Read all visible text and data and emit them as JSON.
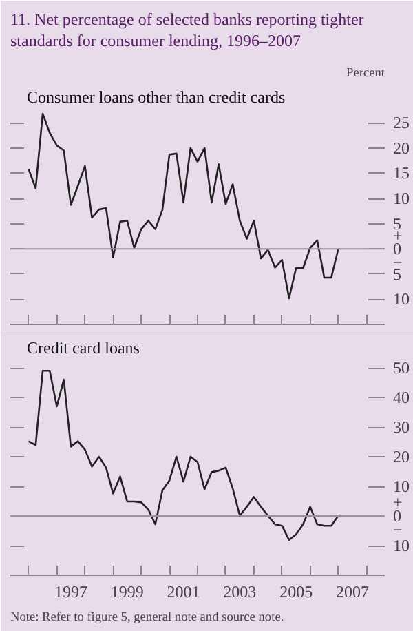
{
  "chart_data": [
    {
      "type": "line",
      "title": "11.   Net percentage of selected banks reporting tighter standards for consumer lending, 1996–2007",
      "annotations": [
        "Percent"
      ],
      "x": [
        1996.0,
        1996.25,
        1996.5,
        1996.75,
        1997.0,
        1997.25,
        1997.5,
        1997.75,
        1998.0,
        1998.25,
        1998.5,
        1998.75,
        1999.0,
        1999.25,
        1999.5,
        1999.75,
        2000.0,
        2000.25,
        2000.5,
        2000.75,
        2001.0,
        2001.25,
        2001.5,
        2001.75,
        2002.0,
        2002.25,
        2002.5,
        2002.75,
        2003.0,
        2003.25,
        2003.5,
        2003.75,
        2004.0,
        2004.25,
        2004.5,
        2004.75,
        2005.0,
        2005.25,
        2005.5,
        2005.75,
        2006.0,
        2006.25,
        2006.5,
        2006.75,
        2007.0
      ],
      "series": [
        {
          "name": "Consumer loans other than credit cards",
          "color": "#222222",
          "values": [
            15.8,
            12,
            26.8,
            23,
            20.5,
            19.5,
            8.7,
            12.5,
            16.4,
            6.2,
            7.8,
            8.1,
            -1.7,
            5.4,
            5.6,
            0.2,
            3.9,
            5.6,
            3.9,
            7.7,
            18.7,
            18.9,
            9.2,
            20,
            17.3,
            20,
            9.2,
            16.8,
            8.9,
            12.8,
            5.6,
            2,
            5.6,
            -1.9,
            -0.2,
            -3.7,
            -2.2,
            -9.8,
            -3.8,
            -3.8,
            0.2,
            1.7,
            -5.7,
            -5.7,
            0
          ]
        }
      ],
      "xlim": [
        1995.35,
        2008.65
      ],
      "ylim": [
        -15,
        32
      ],
      "xticks": [
        {
          "value": 1996,
          "label": null
        },
        {
          "value": 1997,
          "label": null
        },
        {
          "value": 1998,
          "label": null
        },
        {
          "value": 1999,
          "label": null
        },
        {
          "value": 2000,
          "label": null
        },
        {
          "value": 2001,
          "label": null
        },
        {
          "value": 2002,
          "label": null
        },
        {
          "value": 2003,
          "label": null
        },
        {
          "value": 2004,
          "label": null
        },
        {
          "value": 2005,
          "label": null
        },
        {
          "value": 2006,
          "label": null
        },
        {
          "value": 2007,
          "label": null
        },
        {
          "value": 2008,
          "label": null
        }
      ],
      "yticks": [
        {
          "value": -10,
          "label": "10"
        },
        {
          "value": -5,
          "label": "5"
        },
        {
          "value": 0,
          "label": "+\n0\n−"
        },
        5,
        10,
        15,
        20,
        25
      ],
      "ref_lines": [
        {
          "axis": "y",
          "value": 0,
          "label": null,
          "color": "#9a8fa0"
        }
      ],
      "tick_labels": "y",
      "grid": false
    },
    {
      "type": "line",
      "annotations": [
        "Note: Refer to figure 5, general note and source note."
      ],
      "x": [
        1996.0,
        1996.25,
        1996.5,
        1996.75,
        1997.0,
        1997.25,
        1997.5,
        1997.75,
        1998.0,
        1998.25,
        1998.5,
        1998.75,
        1999.0,
        1999.25,
        1999.5,
        1999.75,
        2000.0,
        2000.25,
        2000.5,
        2000.75,
        2001.0,
        2001.25,
        2001.5,
        2001.75,
        2002.0,
        2002.25,
        2002.5,
        2002.75,
        2003.0,
        2003.25,
        2003.5,
        2003.75,
        2004.0,
        2004.25,
        2004.5,
        2004.75,
        2005.0,
        2005.25,
        2005.5,
        2005.75,
        2006.0,
        2006.25,
        2006.5,
        2006.75,
        2007.0
      ],
      "series": [
        {
          "name": "Credit card loans",
          "color": "#222222",
          "values": [
            25.2,
            23.9,
            49,
            49,
            37,
            46,
            23.4,
            25.2,
            22.4,
            16.7,
            20,
            16.3,
            7.6,
            13.3,
            4.9,
            4.9,
            4.6,
            2.2,
            -2.8,
            8.6,
            12,
            20,
            11.6,
            20,
            18.2,
            9,
            14.8,
            15.3,
            16.3,
            9.3,
            0.1,
            3.1,
            6.4,
            3.1,
            0.1,
            -2.8,
            -3.3,
            -8.1,
            -6.2,
            -2.8,
            3.1,
            -2.8,
            -3.3,
            -3.3,
            0.1
          ]
        }
      ],
      "xlim": [
        1995.35,
        2008.65
      ],
      "ylim": [
        -20,
        60
      ],
      "xticks": [
        {
          "value": 1996,
          "label": null
        },
        {
          "value": 1997,
          "label": null
        },
        {
          "value": 1998,
          "label": null
        },
        {
          "value": 1999,
          "label": null
        },
        {
          "value": 2000,
          "label": null
        },
        {
          "value": 2001,
          "label": null
        },
        {
          "value": 2002,
          "label": null
        },
        {
          "value": 2003,
          "label": null
        },
        {
          "value": 2004,
          "label": null
        },
        {
          "value": 2005,
          "label": null
        },
        {
          "value": 2006,
          "label": null
        },
        {
          "value": 2007,
          "label": null
        },
        {
          "value": 2008,
          "label": null
        },
        {
          "value": 1997.5,
          "label": "1997"
        },
        {
          "value": 1999.5,
          "label": "1999"
        },
        {
          "value": 2001.5,
          "label": "2001"
        },
        {
          "value": 2003.5,
          "label": "2003"
        },
        {
          "value": 2005.5,
          "label": "2005"
        },
        {
          "value": 2007.5,
          "label": "2007"
        }
      ],
      "yticks": [
        {
          "value": -10,
          "label": "10"
        },
        {
          "value": 0,
          "label": "+\n0\n−"
        },
        10,
        20,
        30,
        40,
        50
      ],
      "ref_lines": [
        {
          "axis": "y",
          "value": 0,
          "label": null,
          "color": "#9a8fa0"
        }
      ],
      "grid": false
    }
  ]
}
